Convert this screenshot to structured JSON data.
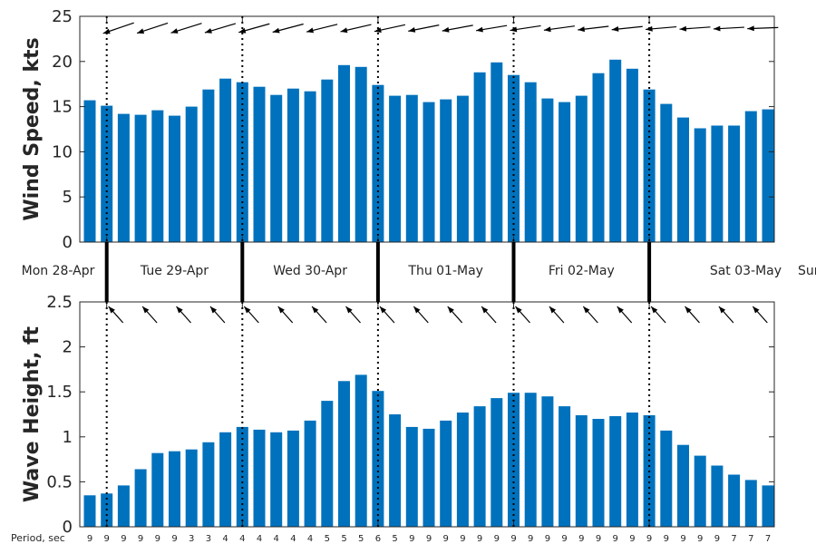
{
  "chart_data": [
    {
      "type": "bar",
      "ylabel": "Wind Speed, kts",
      "ylim": [
        0,
        25
      ],
      "yticks": [
        0,
        5,
        10,
        15,
        20,
        25
      ],
      "bar_color": "#0072BD",
      "arrow_color": "#000000",
      "values": [
        15.7,
        15.1,
        14.2,
        14.1,
        14.6,
        14.0,
        15.0,
        16.9,
        18.1,
        17.7,
        17.2,
        16.3,
        17.0,
        16.7,
        18.0,
        19.6,
        19.4,
        17.4,
        16.2,
        16.3,
        15.5,
        15.8,
        16.2,
        18.8,
        19.9,
        18.5,
        17.7,
        15.9,
        15.5,
        16.2,
        18.7,
        20.2,
        19.2,
        16.9,
        15.3,
        13.8,
        12.6,
        12.9,
        12.9,
        14.5,
        14.7
      ],
      "direction_arrows": "wind arrows pointing toward lower-left (westward), one every other bar"
    },
    {
      "type": "bar",
      "ylabel": "Wave Height, ft",
      "ylim": [
        0,
        2.5
      ],
      "yticks": [
        0,
        0.5,
        1,
        1.5,
        2,
        2.5
      ],
      "yticklabels": [
        "0",
        "0.5",
        "1",
        "1.5",
        "2",
        "2.5"
      ],
      "bar_color": "#0072BD",
      "values": [
        0.35,
        0.37,
        0.46,
        0.64,
        0.82,
        0.84,
        0.86,
        0.94,
        1.05,
        1.11,
        1.08,
        1.05,
        1.07,
        1.18,
        1.4,
        1.62,
        1.69,
        1.51,
        1.25,
        1.11,
        1.09,
        1.18,
        1.27,
        1.34,
        1.43,
        1.49,
        1.49,
        1.45,
        1.34,
        1.24,
        1.2,
        1.23,
        1.27,
        1.24,
        1.07,
        0.91,
        0.79,
        0.68,
        0.58,
        0.52,
        0.46
      ],
      "period_label": "Period, sec",
      "periods": [
        "9",
        "9",
        "9",
        "9",
        "9",
        "9",
        "3",
        "3",
        "4",
        "4",
        "4",
        "4",
        "4",
        "4",
        "5",
        "5",
        "5",
        "6",
        "5",
        "9",
        "9",
        "9",
        "9",
        "9",
        "9",
        "9",
        "9",
        "9",
        "9",
        "9",
        "9",
        "9",
        "9",
        "9",
        "9",
        "9",
        "9",
        "9",
        "7",
        "7",
        "7"
      ],
      "direction_arrows": "wave arrows pointing toward upper-left, one every other bar"
    }
  ],
  "days": {
    "labels": [
      "Mon 28-Apr",
      "Tue 29-Apr",
      "Wed 30-Apr",
      "Thu 01-May",
      "Fri 02-May",
      "Sat 03-May",
      "Sun"
    ]
  }
}
